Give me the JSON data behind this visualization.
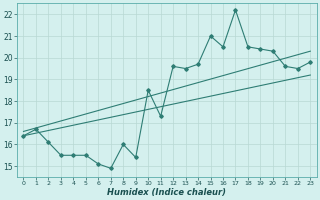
{
  "title": "",
  "xlabel": "Humidex (Indice chaleur)",
  "ylabel": "",
  "xlim": [
    -0.5,
    23.5
  ],
  "ylim": [
    14.5,
    22.5
  ],
  "xticks": [
    0,
    1,
    2,
    3,
    4,
    5,
    6,
    7,
    8,
    9,
    10,
    11,
    12,
    13,
    14,
    15,
    16,
    17,
    18,
    19,
    20,
    21,
    22,
    23
  ],
  "yticks": [
    15,
    16,
    17,
    18,
    19,
    20,
    21,
    22
  ],
  "bg_color": "#d4f0ee",
  "grid_color": "#b8d8d4",
  "line_color": "#2e7d74",
  "jagged_x": [
    0,
    1,
    2,
    3,
    4,
    5,
    6,
    7,
    8,
    9,
    10,
    11,
    12,
    13,
    14,
    15,
    16,
    17,
    18,
    19,
    20,
    21,
    22,
    23
  ],
  "jagged_y": [
    16.4,
    16.7,
    16.1,
    15.5,
    15.5,
    15.5,
    15.1,
    14.9,
    16.0,
    15.4,
    18.5,
    17.3,
    19.6,
    19.5,
    19.7,
    21.0,
    20.5,
    22.2,
    20.5,
    20.4,
    20.3,
    19.6,
    19.5,
    19.8
  ],
  "trend1_x": [
    0,
    23
  ],
  "trend1_y": [
    16.4,
    19.2
  ],
  "trend2_x": [
    0,
    23
  ],
  "trend2_y": [
    16.6,
    20.3
  ]
}
